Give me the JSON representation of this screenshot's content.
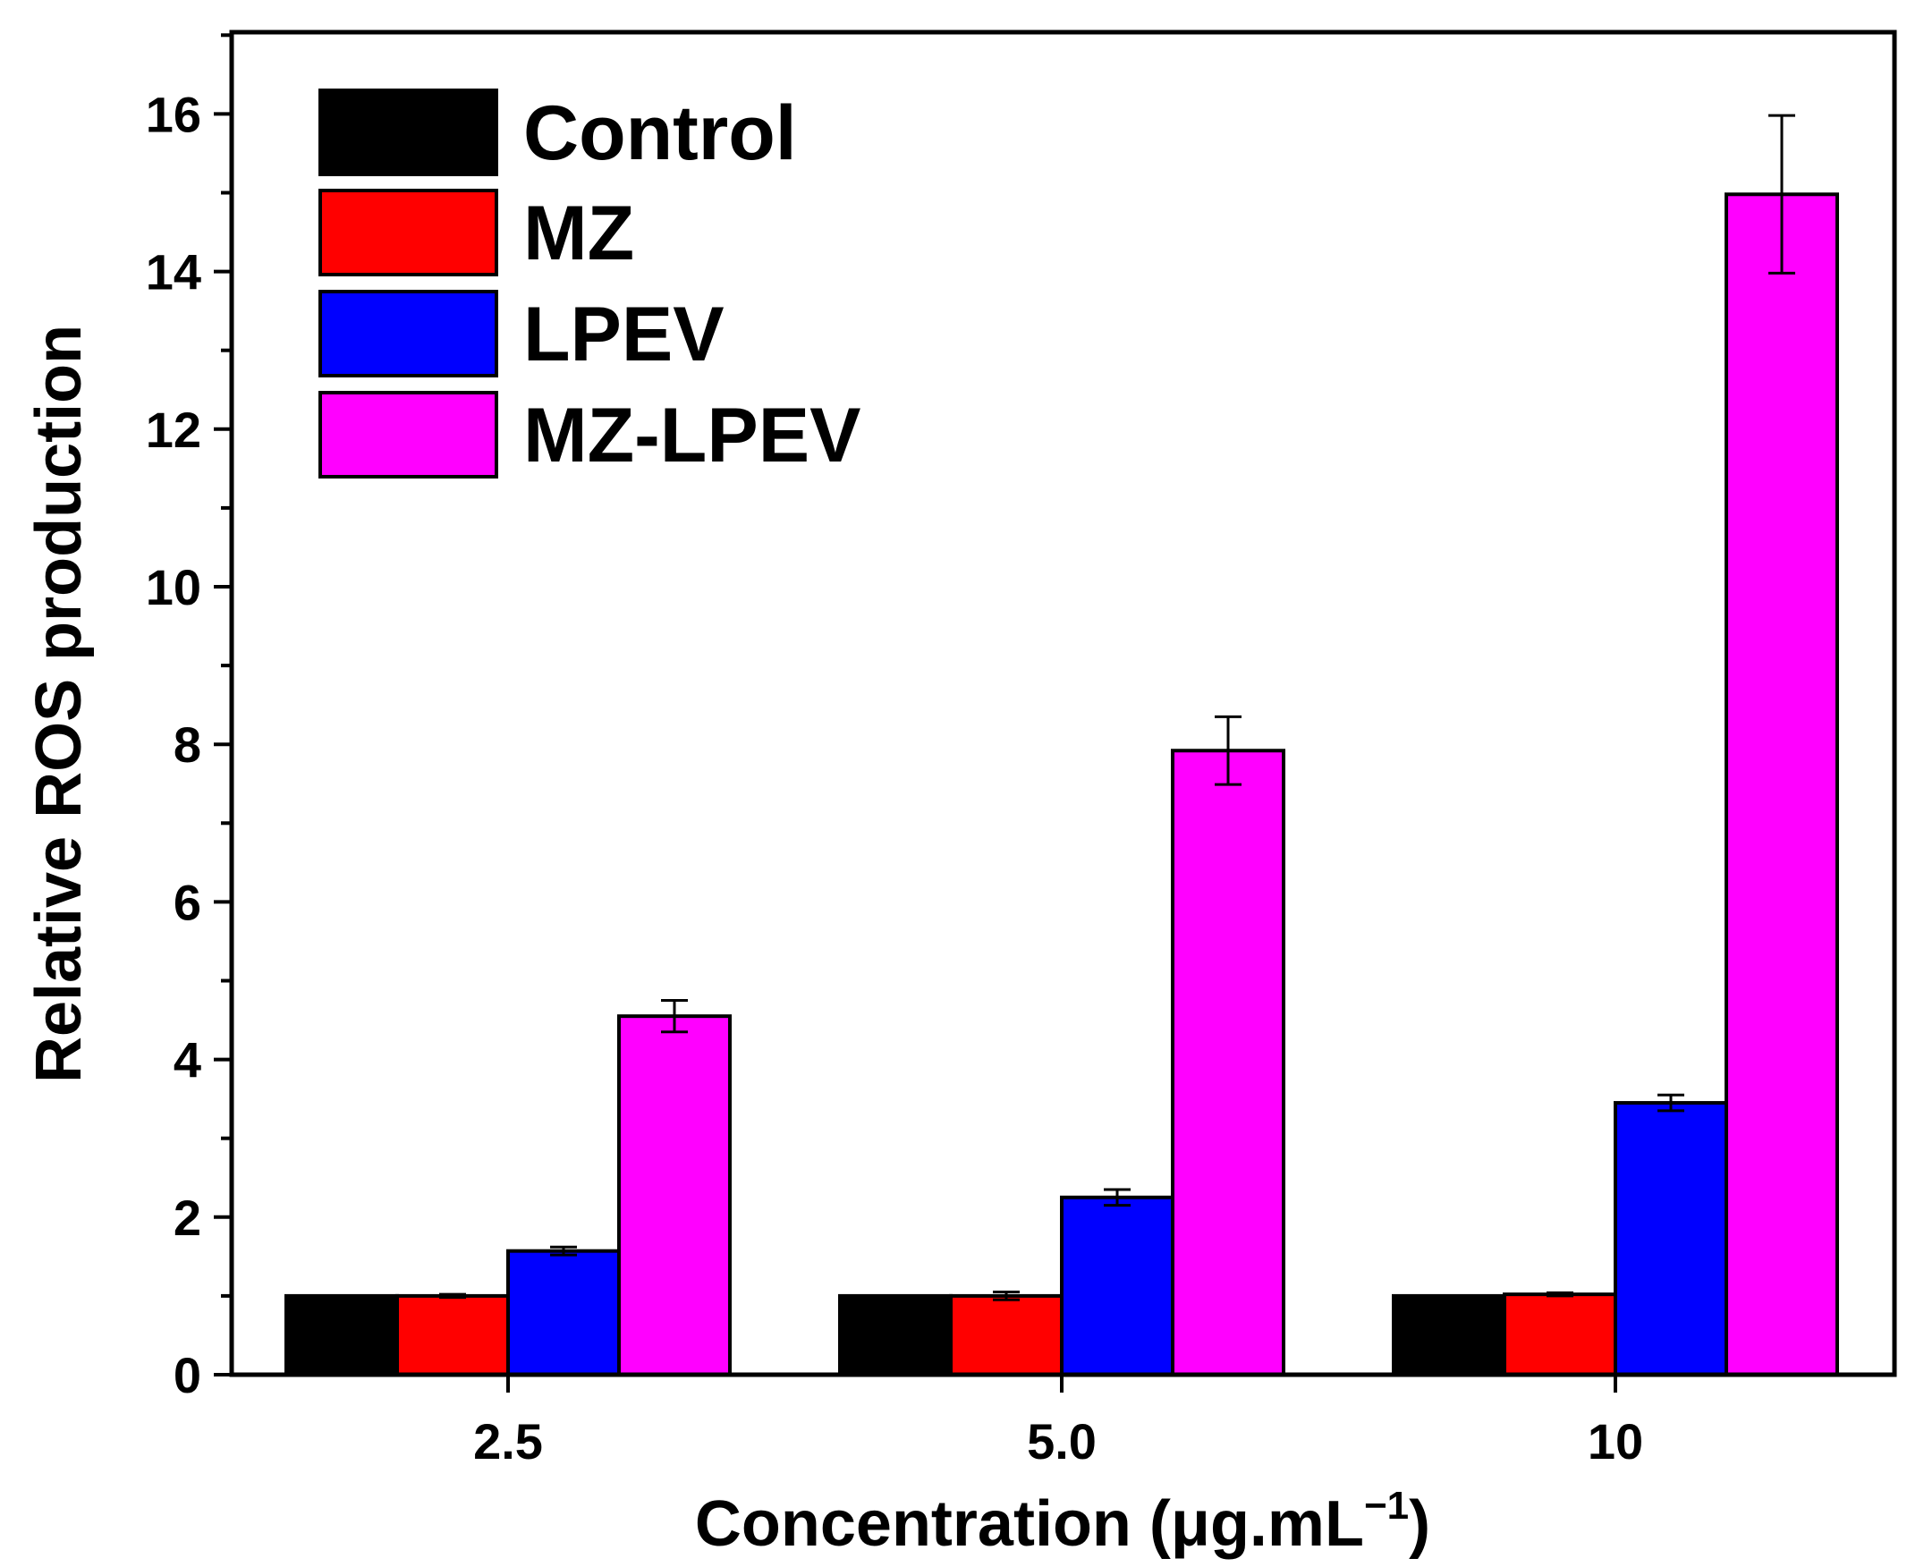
{
  "chart_data": {
    "type": "bar",
    "title": "",
    "xlabel": "Concentration (μg.mL",
    "xlabel_sup": "−1",
    "xlabel_close": ")",
    "ylabel": "Relative ROS production",
    "ylim": [
      0,
      17
    ],
    "yticks": [
      0,
      2,
      4,
      6,
      8,
      10,
      12,
      14,
      16
    ],
    "ytick_labels": [
      "0",
      "2",
      "4",
      "6",
      "8",
      "10",
      "12",
      "14",
      "16"
    ],
    "categories": [
      "2.5",
      "5.0",
      "10"
    ],
    "legend_position": "top-left",
    "series": [
      {
        "name": "Control",
        "color": "#000000",
        "values": [
          1.0,
          1.0,
          1.0
        ],
        "errors": [
          0,
          0,
          0
        ]
      },
      {
        "name": "MZ",
        "color": "#ff0000",
        "values": [
          1.0,
          1.0,
          1.02
        ],
        "errors": [
          0.02,
          0.05,
          0.02
        ]
      },
      {
        "name": "LPEV",
        "color": "#0000ff",
        "values": [
          1.57,
          2.25,
          3.45
        ],
        "errors": [
          0.05,
          0.1,
          0.1
        ]
      },
      {
        "name": "MZ-LPEV",
        "color": "#ff00ff",
        "values": [
          4.55,
          7.92,
          14.98
        ],
        "errors": [
          0.2,
          0.43,
          1.0
        ]
      }
    ]
  }
}
